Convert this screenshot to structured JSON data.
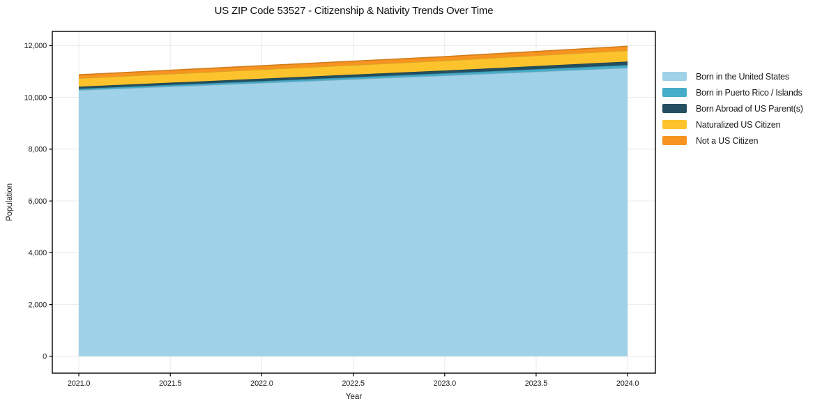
{
  "chart_data": {
    "type": "area",
    "stacked": true,
    "title": "US ZIP Code 53527 - Citizenship & Nativity Trends Over Time",
    "xlabel": "Year",
    "ylabel": "Population",
    "x": [
      2021,
      2022,
      2023,
      2024
    ],
    "series": [
      {
        "name": "Born in the United States",
        "color": "#9fd1e8",
        "values": [
          10280,
          10560,
          10845,
          11140
        ]
      },
      {
        "name": "Born in Puerto Rico / Islands",
        "color": "#45acc9",
        "values": [
          55,
          70,
          85,
          110
        ]
      },
      {
        "name": "Born Abroad of US Parent(s)",
        "color": "#234f60",
        "values": [
          80,
          95,
          110,
          135
        ]
      },
      {
        "name": "Naturalized US Citizen",
        "color": "#fcc32d",
        "values": [
          325,
          355,
          380,
          430
        ]
      },
      {
        "name": "Not a US Citizen",
        "color": "#f79421",
        "values": [
          135,
          145,
          155,
          160
        ]
      }
    ],
    "totals": [
      10875,
      11225,
      11575,
      11975
    ],
    "xlim": [
      2020.855,
      2024.152
    ],
    "ylim": [
      -650,
      12550
    ],
    "x_ticks": [
      2021.0,
      2021.5,
      2022.0,
      2022.5,
      2023.0,
      2023.5,
      2024.0
    ],
    "x_tick_labels": [
      "2021.0",
      "2021.5",
      "2022.0",
      "2022.5",
      "2023.0",
      "2023.5",
      "2024.0"
    ],
    "y_ticks": [
      0,
      2000,
      4000,
      6000,
      8000,
      10000,
      12000
    ],
    "y_tick_labels": [
      "0",
      "2,000",
      "4,000",
      "6,000",
      "8,000",
      "10,000",
      "12,000"
    ],
    "grid": true,
    "grid_color": "#e9e9e9",
    "axis_color": "#000000",
    "legend_position": "right-outside"
  }
}
